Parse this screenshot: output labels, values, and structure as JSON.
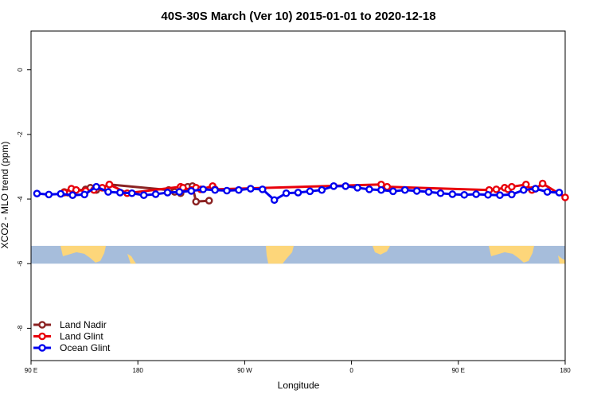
{
  "chart_data": {
    "type": "line",
    "title": "40S-30S March (Ver 10)   2015-01-01 to 2020-12-18",
    "xlabel": "Longitude",
    "ylabel": "XCO2 - MLO trend (ppm)",
    "xlim": [
      90,
      540
    ],
    "ylim": [
      -9,
      1.2
    ],
    "x_ticks": [
      {
        "value": 90,
        "label": "90 E"
      },
      {
        "value": 180,
        "label": "180"
      },
      {
        "value": 270,
        "label": "90 W"
      },
      {
        "value": 360,
        "label": "0"
      },
      {
        "value": 450,
        "label": "90 E"
      },
      {
        "value": 540,
        "label": "180"
      }
    ],
    "y_ticks": [
      {
        "value": 0,
        "label": "0"
      },
      {
        "value": -2,
        "label": "-2"
      },
      {
        "value": -4,
        "label": "-4"
      },
      {
        "value": -6,
        "label": "-6"
      },
      {
        "value": -8,
        "label": "-8"
      }
    ],
    "grid": false,
    "legend_position": "bottom-left",
    "map_band": {
      "y_top": -5.45,
      "y_bottom": -6.0,
      "ocean_color": "#a6bddb",
      "land_color": "#fdd67a"
    },
    "series": [
      {
        "name": "Land Nadir",
        "color": "#8b2323",
        "x": [
          118,
          121,
          126,
          136,
          140,
          145,
          156,
          206,
          211,
          216,
          222,
          226,
          229,
          240
        ],
        "y": [
          -3.78,
          -3.8,
          -3.75,
          -3.7,
          -3.65,
          -3.72,
          -3.55,
          -3.72,
          -3.78,
          -3.82,
          -3.62,
          -3.6,
          -4.08,
          -4.05
        ]
      },
      {
        "name": "Land Glint",
        "color": "#e8000b",
        "x": [
          118,
          124,
          128,
          136,
          143,
          150,
          156,
          171,
          216,
          218,
          225,
          229,
          233,
          243,
          245,
          385,
          390,
          476,
          482,
          489,
          492,
          495,
          507,
          512,
          515,
          521,
          540
        ],
        "y": [
          -3.8,
          -3.68,
          -3.72,
          -3.75,
          -3.72,
          -3.65,
          -3.55,
          -3.82,
          -3.62,
          -3.65,
          -3.72,
          -3.65,
          -3.7,
          -3.6,
          -3.7,
          -3.55,
          -3.62,
          -3.72,
          -3.7,
          -3.65,
          -3.7,
          -3.62,
          -3.55,
          -3.72,
          -3.68,
          -3.52,
          -3.95
        ]
      },
      {
        "name": "Ocean Glint",
        "color": "#0000ee",
        "x": [
          95,
          105,
          115,
          125,
          135,
          145,
          155,
          165,
          175,
          185,
          195,
          205,
          215,
          225,
          235,
          245,
          255,
          265,
          275,
          285,
          295,
          305,
          315,
          325,
          335,
          345,
          355,
          365,
          375,
          385,
          395,
          405,
          415,
          425,
          435,
          445,
          455,
          465,
          475,
          485,
          495,
          505,
          515,
          525,
          535
        ],
        "y": [
          -3.83,
          -3.86,
          -3.84,
          -3.88,
          -3.86,
          -3.62,
          -3.78,
          -3.8,
          -3.82,
          -3.88,
          -3.85,
          -3.8,
          -3.78,
          -3.75,
          -3.7,
          -3.72,
          -3.74,
          -3.72,
          -3.68,
          -3.7,
          -4.03,
          -3.82,
          -3.8,
          -3.76,
          -3.72,
          -3.6,
          -3.6,
          -3.65,
          -3.7,
          -3.72,
          -3.76,
          -3.72,
          -3.75,
          -3.78,
          -3.82,
          -3.85,
          -3.87,
          -3.85,
          -3.87,
          -3.88,
          -3.86,
          -3.72,
          -3.68,
          -3.78,
          -3.8
        ]
      }
    ]
  }
}
